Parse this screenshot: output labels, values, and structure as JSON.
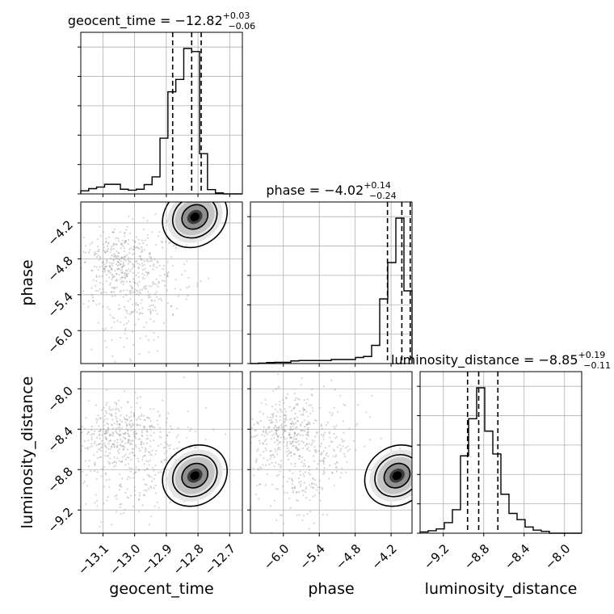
{
  "chart_data": {
    "type": "corner",
    "parameters": [
      "geocent_time",
      "phase",
      "luminosity_distance"
    ],
    "axis_labels": [
      "geocent_time",
      "phase",
      "luminosity_distance"
    ],
    "ranges": {
      "geocent_time": [
        -13.17,
        -12.66
      ],
      "phase": [
        -6.55,
        -3.85
      ],
      "luminosity_distance": [
        -9.43,
        -7.83
      ]
    },
    "ticks": {
      "geocent_time": [
        {
          "value": -13.1,
          "label": "−13.1"
        },
        {
          "value": -13.0,
          "label": "−13.0"
        },
        {
          "value": -12.9,
          "label": "−12.9"
        },
        {
          "value": -12.8,
          "label": "−12.8"
        },
        {
          "value": -12.7,
          "label": "−12.7"
        }
      ],
      "phase": [
        {
          "value": -6.0,
          "label": "−6.0"
        },
        {
          "value": -5.4,
          "label": "−5.4"
        },
        {
          "value": -4.8,
          "label": "−4.8"
        },
        {
          "value": -4.2,
          "label": "−4.2"
        }
      ],
      "luminosity_distance": [
        {
          "value": -9.2,
          "label": "−9.2"
        },
        {
          "value": -8.8,
          "label": "−8.8"
        },
        {
          "value": -8.4,
          "label": "−8.4"
        },
        {
          "value": -8.0,
          "label": "−8.0"
        }
      ]
    },
    "marginal_titles": [
      {
        "name": "geocent_time = ",
        "median": "−12.82",
        "plus": "+0.03",
        "minus": "−0.06"
      },
      {
        "name": "phase = ",
        "median": "−4.02",
        "plus": "+0.14",
        "minus": "−0.24"
      },
      {
        "name": "luminosity_distance = ",
        "median": "−8.85",
        "plus": "+0.19",
        "minus": "−0.11"
      }
    ],
    "quantiles": {
      "geocent_time": [
        -12.88,
        -12.82,
        -12.79
      ],
      "phase": [
        -4.26,
        -4.02,
        -3.88
      ],
      "luminosity_distance": [
        -8.96,
        -8.85,
        -8.66
      ]
    },
    "marginal_histograms": {
      "geocent_time": {
        "edges": [
          -13.17,
          -13.145,
          -13.12,
          -13.095,
          -13.07,
          -13.045,
          -13.02,
          -12.995,
          -12.97,
          -12.945,
          -12.92,
          -12.895,
          -12.87,
          -12.845,
          -12.82,
          -12.795,
          -12.77,
          -12.745,
          -12.72,
          -12.695,
          -12.66
        ],
        "counts": [
          0.1,
          0.17,
          0.22,
          0.31,
          0.31,
          0.15,
          0.12,
          0.15,
          0.3,
          0.55,
          1.8,
          3.3,
          3.7,
          4.7,
          4.6,
          1.3,
          0.14,
          0.03,
          0.0,
          0.0
        ]
      },
      "phase": {
        "edges": [
          -6.55,
          -6.415,
          -6.28,
          -6.145,
          -6.01,
          -5.875,
          -5.74,
          -5.605,
          -5.47,
          -5.335,
          -5.2,
          -5.065,
          -4.93,
          -4.795,
          -4.66,
          -4.525,
          -4.39,
          -4.255,
          -4.12,
          -3.985,
          -3.85
        ],
        "counts": [
          0.0,
          0.02,
          0.05,
          0.06,
          0.06,
          0.13,
          0.15,
          0.15,
          0.15,
          0.15,
          0.2,
          0.2,
          0.2,
          0.3,
          0.35,
          0.9,
          3.2,
          5.0,
          7.2,
          3.6
        ]
      },
      "luminosity_distance": {
        "edges": [
          -9.43,
          -9.35,
          -9.27,
          -9.19,
          -9.11,
          -9.03,
          -8.95,
          -8.87,
          -8.79,
          -8.71,
          -8.63,
          -8.55,
          -8.47,
          -8.39,
          -8.31,
          -8.23,
          -8.15,
          -8.07,
          -7.99,
          -7.91,
          -7.83
        ],
        "counts": [
          0.02,
          0.04,
          0.07,
          0.17,
          0.38,
          1.25,
          1.85,
          2.35,
          1.65,
          1.28,
          0.63,
          0.32,
          0.22,
          0.1,
          0.05,
          0.03,
          0.0,
          0.0,
          0.0,
          0.0
        ]
      }
    },
    "contour_levels": [
      0.39,
      0.86,
      0.99
    ],
    "posterior_modes": [
      {
        "geocent_time": -12.81,
        "phase": -4.1,
        "luminosity_distance": -8.86
      }
    ],
    "scatter_color": "#888888",
    "line_color": "#000000",
    "grid": true
  }
}
